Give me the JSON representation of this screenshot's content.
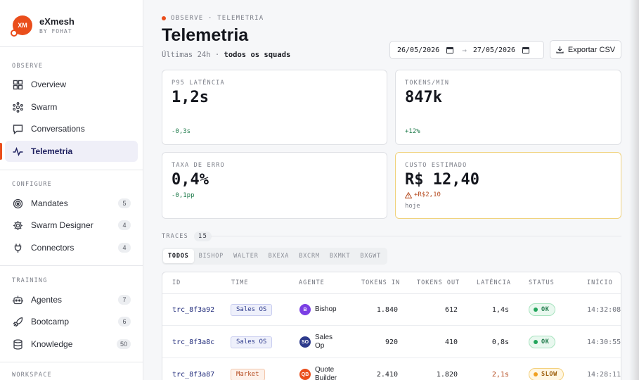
{
  "brand": {
    "logo_text": "XM",
    "name": "eXmesh",
    "sub": "BY FOHAT"
  },
  "sidebar": {
    "sections": [
      {
        "label": "OBSERVE",
        "items": [
          {
            "label": "Overview",
            "icon": "grid-icon"
          },
          {
            "label": "Swarm",
            "icon": "swarm-icon"
          },
          {
            "label": "Conversations",
            "icon": "chat-icon"
          },
          {
            "label": "Telemetria",
            "icon": "pulse-icon",
            "active": true
          }
        ]
      },
      {
        "label": "CONFIGURE",
        "items": [
          {
            "label": "Mandates",
            "icon": "target-icon",
            "badge": "5"
          },
          {
            "label": "Swarm Designer",
            "icon": "gear-icon",
            "badge": "4"
          },
          {
            "label": "Connectors",
            "icon": "plug-icon",
            "badge": "4"
          }
        ]
      },
      {
        "label": "TRAINING",
        "items": [
          {
            "label": "Agentes",
            "icon": "robot-icon",
            "badge": "7"
          },
          {
            "label": "Bootcamp",
            "icon": "rocket-icon",
            "badge": "6"
          },
          {
            "label": "Knowledge",
            "icon": "database-icon",
            "badge": "50"
          }
        ]
      },
      {
        "label": "WORKSPACE",
        "items": []
      }
    ]
  },
  "header": {
    "crumb": "OBSERVE · TELEMETRIA",
    "title": "Telemetria",
    "subtitle_prefix": "Últimas 24h · ",
    "subtitle_scope": "todos os squads",
    "date_from": "26/05/2026",
    "date_to": "27/05/2026",
    "export_label": "Exportar CSV",
    "accent": "#ea4e1c"
  },
  "kpis": [
    {
      "label": "P95 LATÊNCIA",
      "value": "1,2s",
      "delta": "-0,3s"
    },
    {
      "label": "TOKENS/MIN",
      "value": "847k",
      "delta": "+12%"
    },
    {
      "label": "TAXA DE ERRO",
      "value": "0,4%",
      "delta": "-0,1pp"
    },
    {
      "label": "CUSTO ESTIMADO",
      "value": "R$ 12,40",
      "delta": "+R$2,10",
      "note": "hoje",
      "warning_icon": "warning-icon"
    }
  ],
  "traces": {
    "label": "TRACES",
    "count": "15",
    "tabs": [
      "TODOS",
      "BISHOP",
      "WALTER",
      "BXEXA",
      "BXCRM",
      "BXMKT",
      "BXGWT"
    ],
    "active_tab": "TODOS",
    "columns": [
      "ID",
      "TIME",
      "AGENTE",
      "TOKENS IN",
      "TOKENS OUT",
      "LATÊNCIA",
      "STATUS",
      "INÍCIO"
    ],
    "rows": [
      {
        "id": "trc_8f3a92",
        "time": "Sales OS",
        "agent_initials": "B",
        "agent": "Bishop",
        "tokens_in": "1.840",
        "tokens_out": "612",
        "latency": "1,4s",
        "status": "OK",
        "start": "14:32:08"
      },
      {
        "id": "trc_8f3a8c",
        "time": "Sales OS",
        "agent_initials": "SO",
        "agent": "Sales Op",
        "tokens_in": "920",
        "tokens_out": "410",
        "latency": "0,8s",
        "status": "OK",
        "start": "14:30:55"
      },
      {
        "id": "trc_8f3a87",
        "time": "Market",
        "agent_initials": "QB",
        "agent": "Quote Builder",
        "tokens_in": "2.410",
        "tokens_out": "1.820",
        "latency": "2,1s",
        "status": "SLOW",
        "start": "14:28:11"
      }
    ]
  }
}
